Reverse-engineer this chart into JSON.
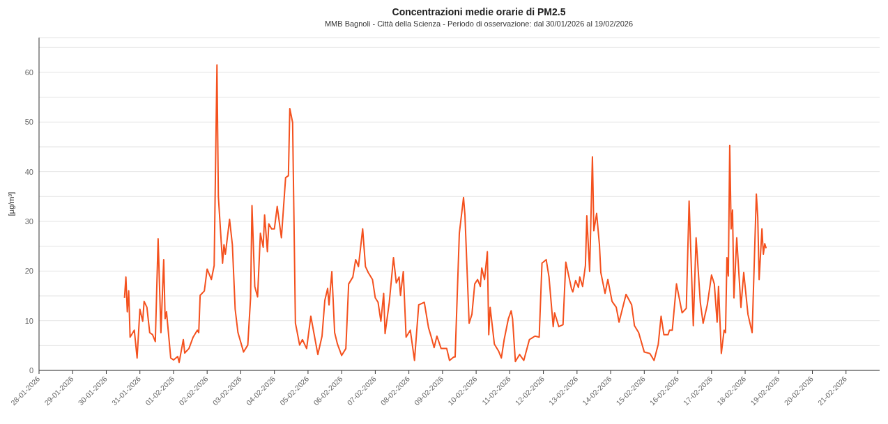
{
  "chart_data": {
    "type": "line",
    "title": "Concentrazioni medie orarie di PM2.5",
    "subtitle": "MMB Bagnoli - Città della Scienza - Periodo di osservazione: dal 30/01/2026 al 19/02/2026",
    "ylabel": "[µg/m³]",
    "x": [
      "2026-01-30T13:00",
      "2026-01-30T14:00",
      "2026-01-30T15:00",
      "2026-01-30T16:00",
      "2026-01-30T17:00",
      "2026-01-30T20:00",
      "2026-01-30T22:00",
      "2026-01-31T00:00",
      "2026-01-31T02:00",
      "2026-01-31T03:00",
      "2026-01-31T05:00",
      "2026-01-31T07:00",
      "2026-01-31T09:00",
      "2026-01-31T11:00",
      "2026-01-31T13:00",
      "2026-01-31T15:00",
      "2026-01-31T17:00",
      "2026-01-31T18:00",
      "2026-01-31T19:00",
      "2026-01-31T22:00",
      "2026-02-01T00:00",
      "2026-02-01T03:00",
      "2026-02-01T04:00",
      "2026-02-01T07:00",
      "2026-02-01T08:00",
      "2026-02-01T11:00",
      "2026-02-01T14:00",
      "2026-02-01T17:00",
      "2026-02-01T18:00",
      "2026-02-01T19:00",
      "2026-02-01T22:00",
      "2026-02-02T00:00",
      "2026-02-02T03:00",
      "2026-02-02T05:00",
      "2026-02-02T07:00",
      "2026-02-02T08:00",
      "2026-02-02T11:00",
      "2026-02-02T12:00",
      "2026-02-02T13:00",
      "2026-02-02T16:00",
      "2026-02-02T18:00",
      "2026-02-02T20:00",
      "2026-02-02T22:00",
      "2026-02-03T02:00",
      "2026-02-03T05:00",
      "2026-02-03T07:00",
      "2026-02-03T08:00",
      "2026-02-03T10:00",
      "2026-02-03T12:00",
      "2026-02-03T14:00",
      "2026-02-03T16:00",
      "2026-02-03T17:00",
      "2026-02-03T19:00",
      "2026-02-03T20:00",
      "2026-02-03T22:00",
      "2026-02-04T00:00",
      "2026-02-04T02:00",
      "2026-02-04T05:00",
      "2026-02-04T08:00",
      "2026-02-04T10:00",
      "2026-02-04T11:00",
      "2026-02-04T13:00",
      "2026-02-04T15:00",
      "2026-02-04T16:00",
      "2026-02-04T18:00",
      "2026-02-04T20:00",
      "2026-02-04T23:00",
      "2026-02-05T02:00",
      "2026-02-05T07:00",
      "2026-02-05T10:00",
      "2026-02-05T12:00",
      "2026-02-05T14:00",
      "2026-02-05T15:00",
      "2026-02-05T17:00",
      "2026-02-05T19:00",
      "2026-02-05T21:00",
      "2026-02-06T00:00",
      "2026-02-06T03:00",
      "2026-02-06T05:00",
      "2026-02-06T08:00",
      "2026-02-06T10:00",
      "2026-02-06T12:00",
      "2026-02-06T15:00",
      "2026-02-06T17:00",
      "2026-02-06T19:00",
      "2026-02-06T22:00",
      "2026-02-07T00:00",
      "2026-02-07T02:00",
      "2026-02-07T04:00",
      "2026-02-07T06:00",
      "2026-02-07T07:00",
      "2026-02-07T10:00",
      "2026-02-07T13:00",
      "2026-02-07T15:00",
      "2026-02-07T17:00",
      "2026-02-07T18:00",
      "2026-02-07T20:00",
      "2026-02-07T22:00",
      "2026-02-08T01:00",
      "2026-02-08T04:00",
      "2026-02-08T07:00",
      "2026-02-08T11:00",
      "2026-02-08T14:00",
      "2026-02-08T16:00",
      "2026-02-08T18:00",
      "2026-02-08T20:00",
      "2026-02-08T23:00",
      "2026-02-09T03:00",
      "2026-02-09T05:00",
      "2026-02-09T08:00",
      "2026-02-09T09:00",
      "2026-02-09T12:00",
      "2026-02-09T15:00",
      "2026-02-09T16:00",
      "2026-02-09T19:00",
      "2026-02-09T21:00",
      "2026-02-09T23:00",
      "2026-02-10T01:00",
      "2026-02-10T03:00",
      "2026-02-10T04:00",
      "2026-02-10T06:00",
      "2026-02-10T08:00",
      "2026-02-10T09:00",
      "2026-02-10T10:00",
      "2026-02-10T13:00",
      "2026-02-10T16:00",
      "2026-02-10T18:00",
      "2026-02-10T20:00",
      "2026-02-10T23:00",
      "2026-02-11T01:00",
      "2026-02-11T02:00",
      "2026-02-11T04:00",
      "2026-02-11T07:00",
      "2026-02-11T10:00",
      "2026-02-11T14:00",
      "2026-02-11T18:00",
      "2026-02-11T21:00",
      "2026-02-11T23:00",
      "2026-02-12T02:00",
      "2026-02-12T04:00",
      "2026-02-12T07:00",
      "2026-02-12T08:00",
      "2026-02-12T11:00",
      "2026-02-12T14:00",
      "2026-02-12T16:00",
      "2026-02-12T20:00",
      "2026-02-12T21:00",
      "2026-02-12T23:00",
      "2026-02-13T01:00",
      "2026-02-13T02:00",
      "2026-02-13T04:00",
      "2026-02-13T06:00",
      "2026-02-13T07:00",
      "2026-02-13T09:00",
      "2026-02-13T11:00",
      "2026-02-13T12:00",
      "2026-02-13T14:00",
      "2026-02-13T16:00",
      "2026-02-13T17:00",
      "2026-02-13T20:00",
      "2026-02-13T22:00",
      "2026-02-14T01:00",
      "2026-02-14T04:00",
      "2026-02-14T06:00",
      "2026-02-14T11:00",
      "2026-02-14T15:00",
      "2026-02-14T17:00",
      "2026-02-14T20:00",
      "2026-02-15T00:00",
      "2026-02-15T04:00",
      "2026-02-15T07:00",
      "2026-02-15T10:00",
      "2026-02-15T12:00",
      "2026-02-15T14:00",
      "2026-02-15T17:00",
      "2026-02-15T18:00",
      "2026-02-15T20:00",
      "2026-02-15T23:00",
      "2026-02-16T03:00",
      "2026-02-16T06:00",
      "2026-02-16T08:00",
      "2026-02-16T11:00",
      "2026-02-16T13:00",
      "2026-02-16T16:00",
      "2026-02-16T18:00",
      "2026-02-16T21:00",
      "2026-02-17T00:00",
      "2026-02-17T02:00",
      "2026-02-17T04:00",
      "2026-02-17T05:00",
      "2026-02-17T07:00",
      "2026-02-17T09:00",
      "2026-02-17T10:00",
      "2026-02-17T11:00",
      "2026-02-17T12:00",
      "2026-02-17T13:00",
      "2026-02-17T14:00",
      "2026-02-17T15:00",
      "2026-02-17T16:00",
      "2026-02-17T18:00",
      "2026-02-17T21:00",
      "2026-02-17T23:00",
      "2026-02-18T02:00",
      "2026-02-18T05:00",
      "2026-02-18T08:00",
      "2026-02-18T09:00",
      "2026-02-18T10:00",
      "2026-02-18T12:00",
      "2026-02-18T13:00",
      "2026-02-18T14:00",
      "2026-02-18T15:00"
    ],
    "series": [
      {
        "color": "#f4511e",
        "values": [
          14.6,
          18.8,
          11.8,
          16,
          6.7,
          8.1,
          2.5,
          12.3,
          9.9,
          13.9,
          12.7,
          7.6,
          7.2,
          5.8,
          26.5,
          7.6,
          22.3,
          10.4,
          11.8,
          2.5,
          2.1,
          2.8,
          1.6,
          6.2,
          3.5,
          4.4,
          6.7,
          8.1,
          7.6,
          15.1,
          16,
          20.4,
          18.3,
          21.1,
          61.5,
          35,
          21.6,
          25.3,
          23.4,
          30.4,
          25.3,
          12.3,
          7.6,
          3.7,
          5.1,
          14.6,
          33.2,
          16.9,
          14.8,
          27.6,
          24.8,
          31.3,
          23.9,
          29.5,
          28.5,
          28.5,
          33,
          26.7,
          38.8,
          39.2,
          52.7,
          49.9,
          9.5,
          8.1,
          5.1,
          6.2,
          4.4,
          10.9,
          3.2,
          6.9,
          14.1,
          16.5,
          13.2,
          19.9,
          7.6,
          5.3,
          3,
          4.4,
          17.4,
          18.8,
          22.3,
          20.9,
          28.5,
          20.9,
          19.7,
          18.3,
          14.6,
          13.7,
          9.9,
          15.5,
          7.4,
          13.7,
          22.7,
          17.6,
          18.8,
          15.1,
          19.9,
          6.7,
          8.1,
          2,
          13.2,
          13.7,
          8.6,
          6.7,
          4.6,
          6.9,
          4.4,
          4.4,
          2,
          2.7,
          2.7,
          27.6,
          34.8,
          31.3,
          9.5,
          11.3,
          17.4,
          18.3,
          16.9,
          20.6,
          18.3,
          23.9,
          7.2,
          12.7,
          5.3,
          3.9,
          2.5,
          6.2,
          10.4,
          12,
          10.4,
          1.8,
          3.2,
          2,
          6.2,
          6.9,
          6.7,
          21.6,
          22.3,
          18.8,
          8.8,
          11.6,
          8.8,
          9.2,
          21.8,
          16.5,
          15.8,
          18.1,
          16.7,
          18.8,
          16.9,
          21.1,
          31.1,
          19.9,
          43,
          28.1,
          31.6,
          25.3,
          19.7,
          15.5,
          18.3,
          13.9,
          12.7,
          9.7,
          15.3,
          13.2,
          9,
          7.6,
          3.7,
          3.4,
          2,
          5.3,
          10.9,
          7.2,
          7.2,
          8.1,
          8.1,
          17.4,
          11.6,
          12.5,
          34.1,
          9,
          26.7,
          13.7,
          9.5,
          13.2,
          19.2,
          17.4,
          9.7,
          16.9,
          3.4,
          8.1,
          7.6,
          22.7,
          19,
          45.3,
          28.5,
          32.3,
          14.6,
          26.7,
          12.7,
          19.7,
          11.3,
          7.6,
          35.5,
          30.9,
          18.3,
          28.5,
          23.4,
          25.5,
          24.6
        ]
      }
    ],
    "xlim": [
      "2026-01-28",
      "2026-02-22"
    ],
    "xticks": [
      {
        "value": "2026-01-28",
        "label": "28-01-2026"
      },
      {
        "value": "2026-01-29",
        "label": "29-01-2026"
      },
      {
        "value": "2026-01-30",
        "label": "30-01-2026"
      },
      {
        "value": "2026-01-31",
        "label": "31-01-2026"
      },
      {
        "value": "2026-02-01",
        "label": "01-02-2026"
      },
      {
        "value": "2026-02-02",
        "label": "02-02-2026"
      },
      {
        "value": "2026-02-03",
        "label": "03-02-2026"
      },
      {
        "value": "2026-02-04",
        "label": "04-02-2026"
      },
      {
        "value": "2026-02-05",
        "label": "05-02-2026"
      },
      {
        "value": "2026-02-06",
        "label": "06-02-2026"
      },
      {
        "value": "2026-02-07",
        "label": "07-02-2026"
      },
      {
        "value": "2026-02-08",
        "label": "08-02-2026"
      },
      {
        "value": "2026-02-09",
        "label": "09-02-2026"
      },
      {
        "value": "2026-02-10",
        "label": "10-02-2026"
      },
      {
        "value": "2026-02-11",
        "label": "11-02-2026"
      },
      {
        "value": "2026-02-12",
        "label": "12-02-2026"
      },
      {
        "value": "2026-02-13",
        "label": "13-02-2026"
      },
      {
        "value": "2026-02-14",
        "label": "14-02-2026"
      },
      {
        "value": "2026-02-15",
        "label": "15-02-2026"
      },
      {
        "value": "2026-02-16",
        "label": "16-02-2026"
      },
      {
        "value": "2026-02-17",
        "label": "17-02-2026"
      },
      {
        "value": "2026-02-18",
        "label": "18-02-2026"
      },
      {
        "value": "2026-02-19",
        "label": "19-02-2026"
      },
      {
        "value": "2026-02-20",
        "label": "20-02-2026"
      },
      {
        "value": "2026-02-21",
        "label": "21-02-2026"
      }
    ],
    "ylim": [
      0,
      67
    ],
    "yticks": [
      0,
      {
        "value": 5,
        "label": null
      },
      10,
      {
        "value": 15,
        "label": null
      },
      20,
      {
        "value": 25,
        "label": null
      },
      30,
      {
        "value": 35,
        "label": null
      },
      40,
      {
        "value": 45,
        "label": null
      },
      50,
      {
        "value": 55,
        "label": null
      },
      60,
      {
        "value": 65,
        "label": null
      }
    ],
    "grid": "y",
    "marker": "none",
    "line_style": "solid",
    "legend": false
  }
}
